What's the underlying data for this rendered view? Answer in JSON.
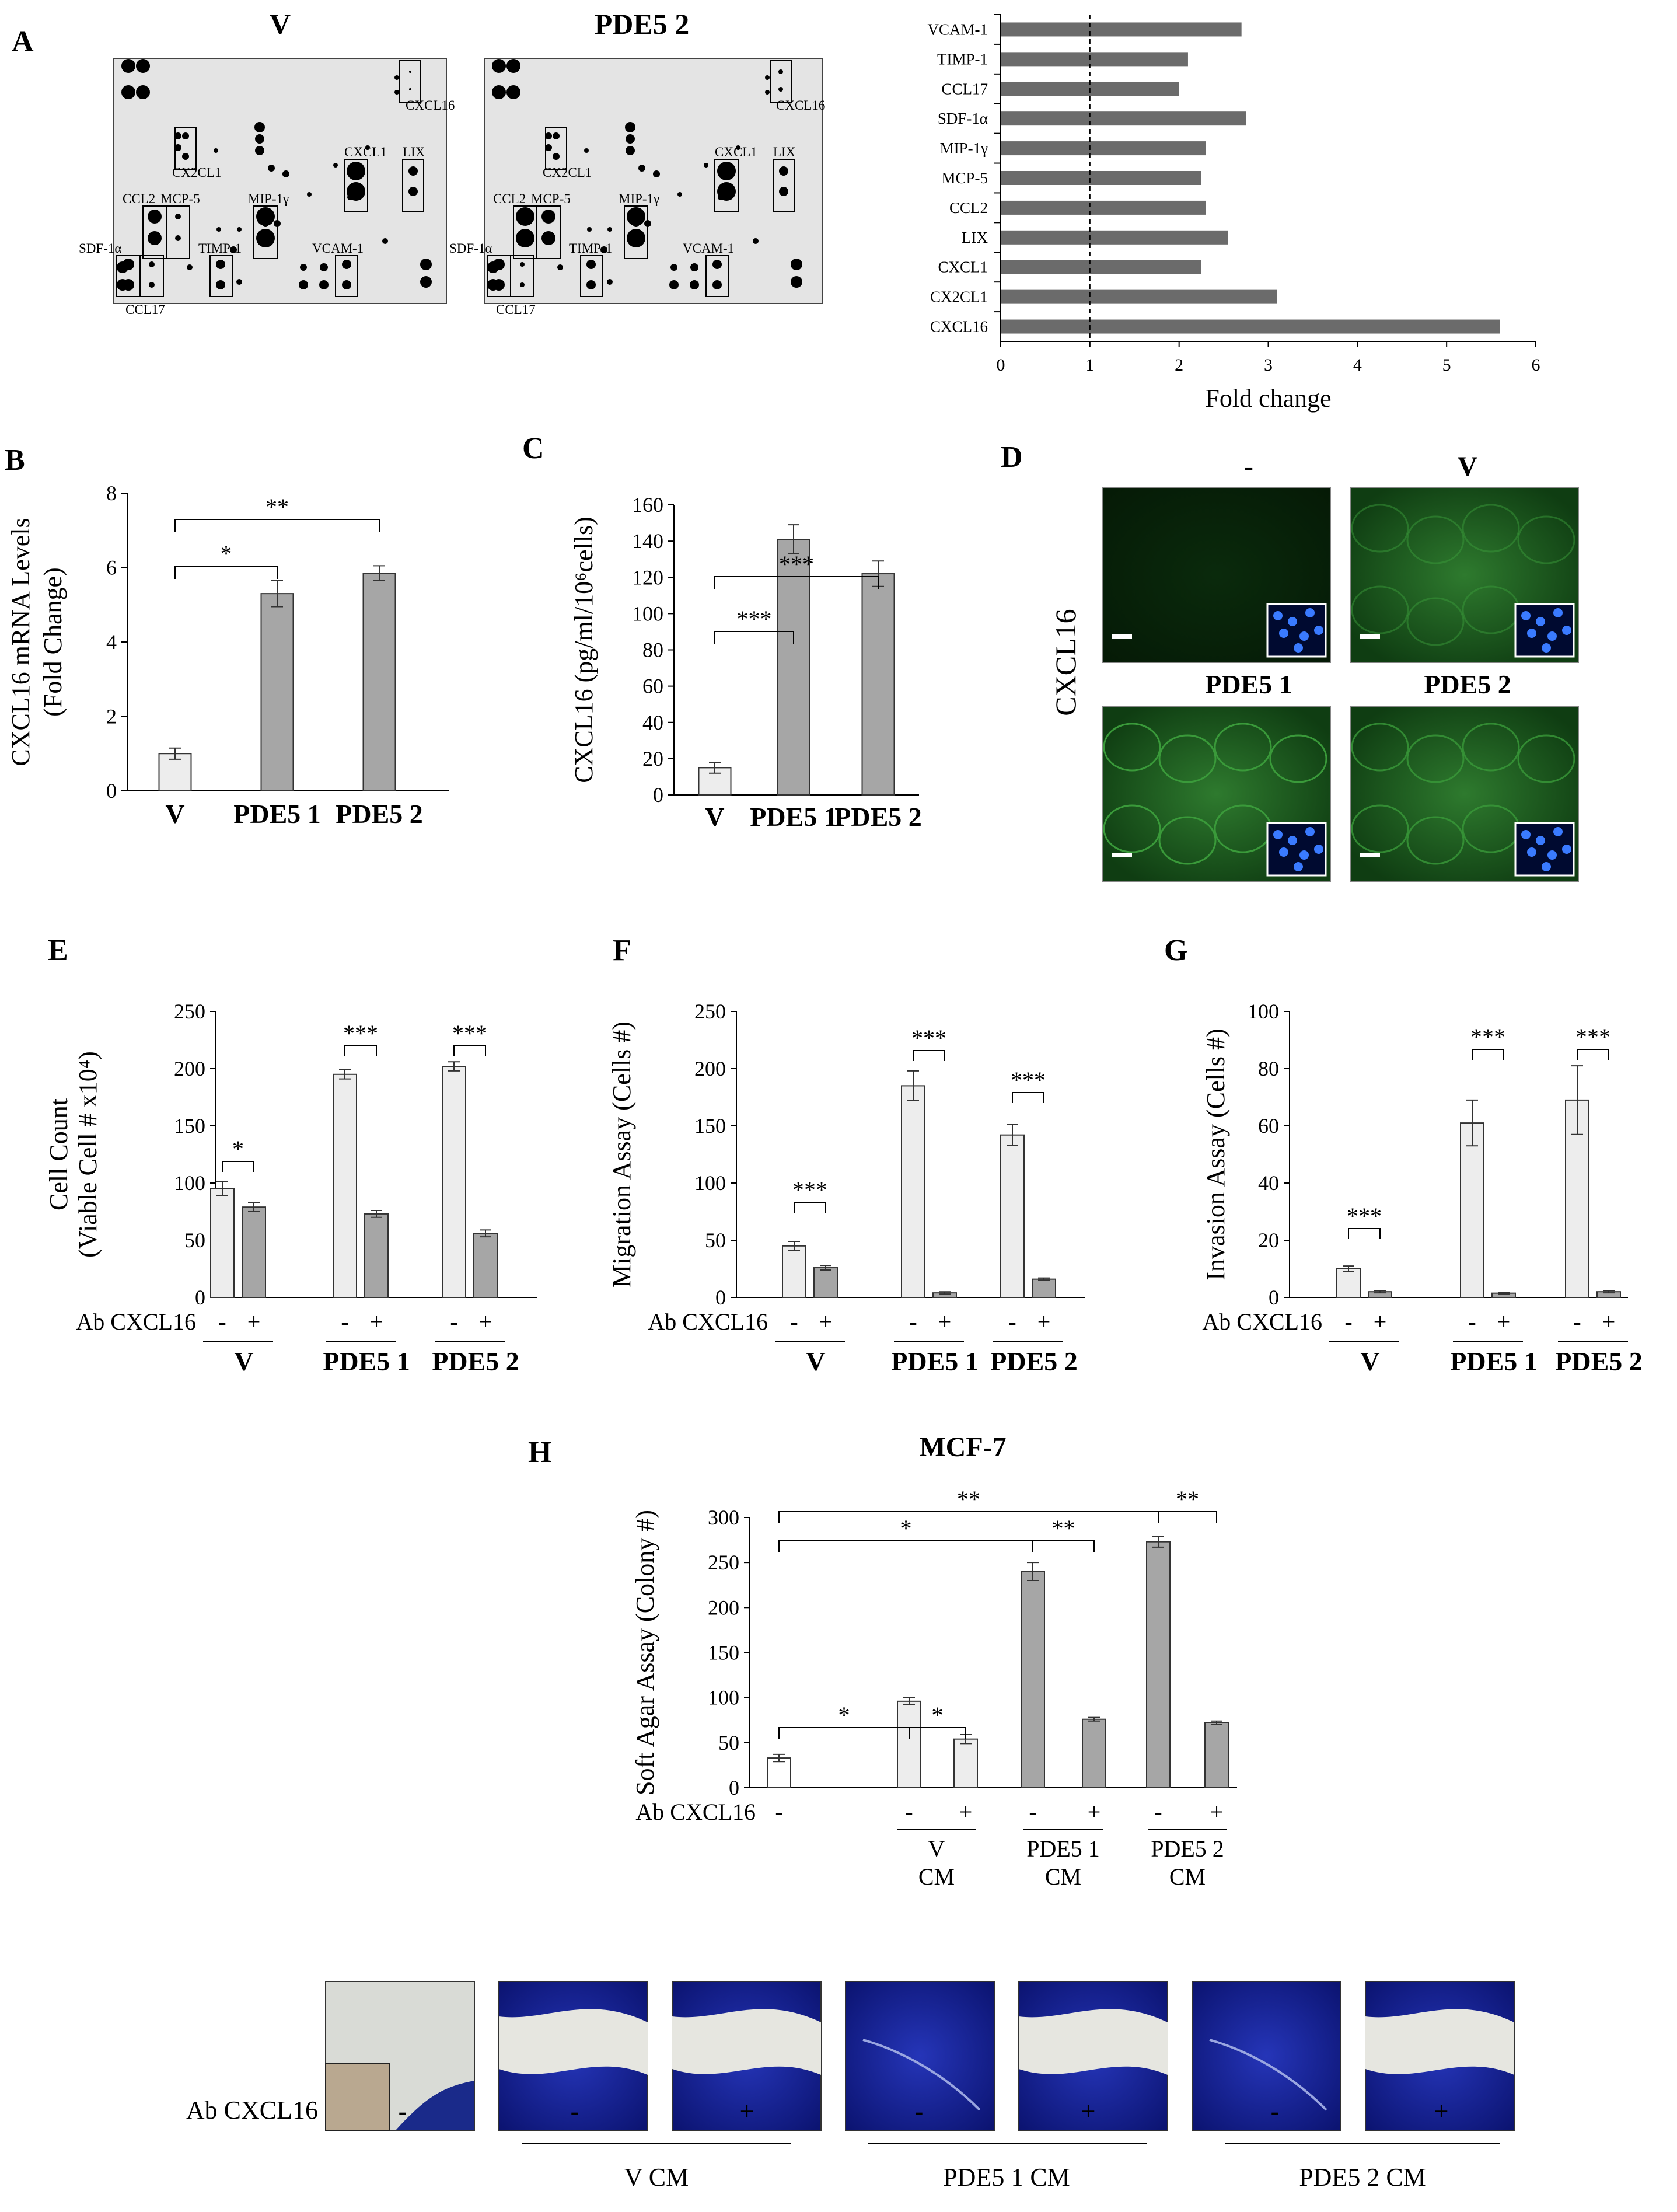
{
  "panels": {
    "A": {
      "letter": "A",
      "array_v_title": "V",
      "array_pde_title": "PDE5 2",
      "array_v_labels": [
        "CXCL16",
        "CX2CL1",
        "CXCL1",
        "LIX",
        "CCL2",
        "MCP-5",
        "MIP-1γ",
        "SDF-1α",
        "TIMP-1",
        "VCAM-1",
        "CCL17"
      ],
      "array_pde_labels": [
        "CXCL16",
        "CX2CL1",
        "CXCL1",
        "LIX",
        "CCL2",
        "MCP-5",
        "MIP-1γ",
        "SDF-1α",
        "TIMP-1",
        "VCAM-1",
        "CCL17"
      ]
    },
    "B": {
      "letter": "B"
    },
    "C": {
      "letter": "C"
    },
    "D": {
      "letter": "D",
      "ylabel": "CXCL16",
      "image_titles": [
        "-",
        "V",
        "PDE5 1",
        "PDE5 2"
      ]
    },
    "E": {
      "letter": "E",
      "ab_label": "Ab CXCL16"
    },
    "F": {
      "letter": "F",
      "ab_label": "Ab CXCL16"
    },
    "G": {
      "letter": "G",
      "ab_label": "Ab CXCL16"
    },
    "H": {
      "letter": "H",
      "title": "MCF-7",
      "ab_label": "Ab CXCL16",
      "photo_ab_label": "Ab CXCL16",
      "photo_signs": [
        "-",
        "-",
        "+",
        "-",
        "+",
        "-",
        "+"
      ],
      "photo_groups": [
        "V CM",
        "PDE5 1 CM",
        "PDE5 2 CM"
      ]
    }
  },
  "chart_data": [
    {
      "id": "A",
      "type": "bar",
      "orientation": "horizontal",
      "categories": [
        "VCAM-1",
        "TIMP-1",
        "CCL17",
        "SDF-1α",
        "MIP-1γ",
        "MCP-5",
        "CCL2",
        "LIX",
        "CXCL1",
        "CX2CL1",
        "CXCL16"
      ],
      "values": [
        2.7,
        2.1,
        2.0,
        2.75,
        2.3,
        2.25,
        2.3,
        2.55,
        2.25,
        3.1,
        5.6
      ],
      "xlabel": "Fold change",
      "xlim": [
        0,
        6
      ],
      "xticks": [
        "0",
        "1",
        "2",
        "3",
        "4",
        "5",
        "6"
      ],
      "reference_line": 1,
      "colors": {
        "bar": "#6b6b6b"
      }
    },
    {
      "id": "B",
      "type": "bar",
      "categories": [
        "V",
        "PDE5 1",
        "PDE5 2"
      ],
      "values": [
        1.0,
        5.3,
        5.85
      ],
      "errors": [
        0.15,
        0.35,
        0.2
      ],
      "ylabel_line1": "CXCL16 mRNA Levels",
      "ylabel_line2": "(Fold Change)",
      "ylim": [
        0,
        8
      ],
      "yticks": [
        "0",
        "2",
        "4",
        "6",
        "8"
      ],
      "significance": [
        {
          "from": 0,
          "to": 1,
          "label": "*"
        },
        {
          "from": 0,
          "to": 2,
          "label": "**"
        }
      ],
      "colors": {
        "V": "#ededed",
        "PDE": "#a6a6a6"
      }
    },
    {
      "id": "C",
      "type": "bar",
      "categories": [
        "V",
        "PDE5 1",
        "PDE5 2"
      ],
      "values": [
        15,
        141,
        122
      ],
      "errors": [
        3,
        8,
        7
      ],
      "ylabel": "CXCL16 (pg/ml/10⁶cells)",
      "ylim": [
        0,
        160
      ],
      "yticks": [
        "0",
        "20",
        "40",
        "60",
        "80",
        "100",
        "120",
        "140",
        "160"
      ],
      "significance": [
        {
          "from": 0,
          "to": 1,
          "label": "***"
        },
        {
          "from": 0,
          "to": 2,
          "label": "***"
        }
      ],
      "colors": {
        "V": "#ededed",
        "PDE": "#a6a6a6"
      }
    },
    {
      "id": "E",
      "type": "bar",
      "groups": [
        "V",
        "PDE5 1",
        "PDE5 2"
      ],
      "signs": [
        "-",
        "+"
      ],
      "series": [
        {
          "name": "-",
          "values": [
            95,
            195,
            202
          ],
          "errors": [
            6,
            4,
            4
          ]
        },
        {
          "name": "+",
          "values": [
            79,
            73,
            56
          ],
          "errors": [
            4,
            3,
            3
          ]
        }
      ],
      "ylabel_line1": "Cell Count",
      "ylabel_line2": "(Viable Cell # x10⁴)",
      "ylim": [
        0,
        250
      ],
      "yticks": [
        "0",
        "50",
        "100",
        "150",
        "200",
        "250"
      ],
      "significance": [
        "*",
        "***",
        "***"
      ],
      "colors": {
        "minus": "#ededed",
        "plus": "#a6a6a6"
      }
    },
    {
      "id": "F",
      "type": "bar",
      "groups": [
        "V",
        "PDE5 1",
        "PDE5 2"
      ],
      "signs": [
        "-",
        "+"
      ],
      "series": [
        {
          "name": "-",
          "values": [
            45,
            185,
            142
          ],
          "errors": [
            4,
            13,
            9
          ]
        },
        {
          "name": "+",
          "values": [
            26,
            4,
            16
          ],
          "errors": [
            2,
            1,
            1
          ]
        }
      ],
      "ylabel": "Migration Assay (Cells #)",
      "ylim": [
        0,
        250
      ],
      "yticks": [
        "0",
        "50",
        "100",
        "150",
        "200",
        "250"
      ],
      "significance": [
        "***",
        "***",
        "***"
      ],
      "colors": {
        "minus": "#ededed",
        "plus": "#a6a6a6"
      }
    },
    {
      "id": "G",
      "type": "bar",
      "groups": [
        "V",
        "PDE5 1",
        "PDE5 2"
      ],
      "signs": [
        "-",
        "+"
      ],
      "series": [
        {
          "name": "-",
          "values": [
            10,
            61,
            69
          ],
          "errors": [
            1,
            8,
            12
          ]
        },
        {
          "name": "+",
          "values": [
            2,
            1.5,
            2
          ],
          "errors": [
            0.4,
            0.3,
            0.4
          ]
        }
      ],
      "ylabel": "Invasion Assay (Cells #)",
      "ylim": [
        0,
        100
      ],
      "yticks": [
        "0",
        "20",
        "40",
        "60",
        "80",
        "100"
      ],
      "significance": [
        "***",
        "***",
        "***"
      ],
      "colors": {
        "minus": "#ededed",
        "plus": "#a6a6a6"
      }
    },
    {
      "id": "H",
      "type": "bar",
      "title": "MCF-7",
      "categories": [
        "-",
        "V CM -",
        "V CM +",
        "PDE5 1 CM -",
        "PDE5 1 CM +",
        "PDE5 2 CM -",
        "PDE5 2 CM +"
      ],
      "values": [
        33,
        96,
        54,
        240,
        76,
        273,
        72
      ],
      "errors": [
        4,
        4,
        5,
        10,
        2,
        6,
        2
      ],
      "ylabel": "Soft Agar Assay (Colony #)",
      "ylim": [
        0,
        300
      ],
      "yticks": [
        "0",
        "50",
        "100",
        "150",
        "200",
        "250",
        "300"
      ],
      "group_labels": [
        [
          "V",
          "CM"
        ],
        [
          "PDE5 1",
          "CM"
        ],
        [
          "PDE5 2",
          "CM"
        ]
      ],
      "significance": [
        {
          "from": 0,
          "to": 1,
          "label": "*"
        },
        {
          "from": 1,
          "to": 2,
          "label": "*"
        },
        {
          "from": 0,
          "to": 3,
          "label": "*"
        },
        {
          "from": 3,
          "to": 4,
          "label": "**"
        },
        {
          "from": 0,
          "to": 5,
          "label": "**"
        },
        {
          "from": 5,
          "to": 6,
          "label": "**"
        }
      ],
      "colors": {
        "control": "#ffffff",
        "V": "#ededed",
        "PDE": "#a6a6a6"
      }
    }
  ]
}
